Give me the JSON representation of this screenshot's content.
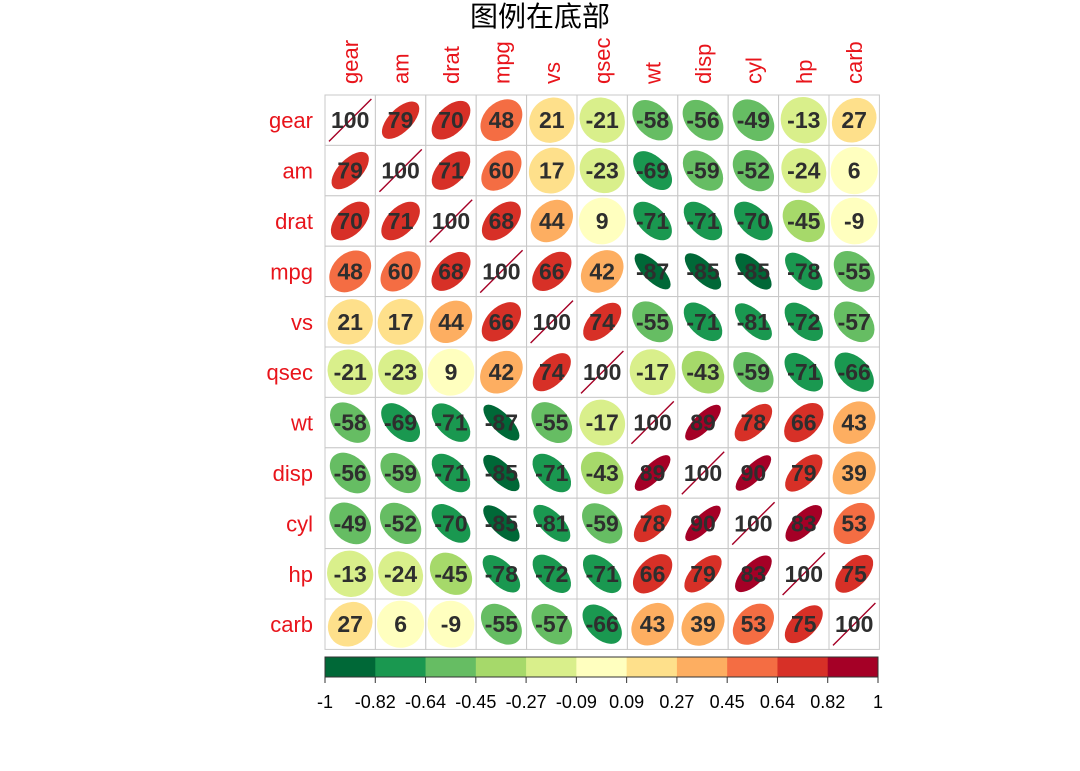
{
  "chart_data": {
    "type": "heatmap",
    "title": "图例在底部",
    "variables": [
      "gear",
      "am",
      "drat",
      "mpg",
      "vs",
      "qsec",
      "wt",
      "disp",
      "cyl",
      "hp",
      "carb"
    ],
    "matrix": [
      [
        1.0,
        0.79,
        0.7,
        0.48,
        0.21,
        -0.21,
        -0.58,
        -0.56,
        -0.49,
        -0.13,
        0.27
      ],
      [
        0.79,
        1.0,
        0.71,
        0.6,
        0.17,
        -0.23,
        -0.69,
        -0.59,
        -0.52,
        -0.24,
        0.06
      ],
      [
        0.7,
        0.71,
        1.0,
        0.68,
        0.44,
        0.09,
        -0.71,
        -0.71,
        -0.7,
        -0.45,
        -0.09
      ],
      [
        0.48,
        0.6,
        0.68,
        1.0,
        0.66,
        0.42,
        -0.87,
        -0.85,
        -0.85,
        -0.78,
        -0.55
      ],
      [
        0.21,
        0.17,
        0.44,
        0.66,
        1.0,
        0.74,
        -0.55,
        -0.71,
        -0.81,
        -0.72,
        -0.57
      ],
      [
        -0.21,
        -0.23,
        0.09,
        0.42,
        0.74,
        1.0,
        -0.17,
        -0.43,
        -0.59,
        -0.71,
        -0.66
      ],
      [
        -0.58,
        -0.69,
        -0.71,
        -0.87,
        -0.55,
        -0.17,
        1.0,
        0.89,
        0.78,
        0.66,
        0.43
      ],
      [
        -0.56,
        -0.59,
        -0.71,
        -0.85,
        -0.71,
        -0.43,
        0.89,
        1.0,
        0.9,
        0.79,
        0.39
      ],
      [
        -0.49,
        -0.52,
        -0.7,
        -0.85,
        -0.81,
        -0.59,
        0.78,
        0.9,
        1.0,
        0.83,
        0.53
      ],
      [
        -0.13,
        -0.24,
        -0.45,
        -0.78,
        -0.72,
        -0.71,
        0.66,
        0.79,
        0.83,
        1.0,
        0.75
      ],
      [
        0.27,
        0.06,
        -0.09,
        -0.55,
        -0.57,
        -0.66,
        0.43,
        0.39,
        0.53,
        0.75,
        1.0
      ]
    ],
    "cell_labels": [
      [
        "100",
        "79",
        "70",
        "48",
        "21",
        "-21",
        "-58",
        "-56",
        "-49",
        "-13",
        "27"
      ],
      [
        "79",
        "100",
        "71",
        "60",
        "17",
        "-23",
        "-69",
        "-59",
        "-52",
        "-24",
        "6"
      ],
      [
        "70",
        "71",
        "100",
        "68",
        "44",
        "9",
        "-71",
        "-71",
        "-70",
        "-45",
        "-9"
      ],
      [
        "48",
        "60",
        "68",
        "100",
        "66",
        "42",
        "-87",
        "-85",
        "-85",
        "-78",
        "-55"
      ],
      [
        "21",
        "17",
        "44",
        "66",
        "100",
        "74",
        "-55",
        "-71",
        "-81",
        "-72",
        "-57"
      ],
      [
        "-21",
        "-23",
        "9",
        "42",
        "74",
        "100",
        "-17",
        "-43",
        "-59",
        "-71",
        "-66"
      ],
      [
        "-58",
        "-69",
        "-71",
        "-87",
        "-55",
        "-17",
        "100",
        "89",
        "78",
        "66",
        "43"
      ],
      [
        "-56",
        "-59",
        "-71",
        "-85",
        "-71",
        "-43",
        "89",
        "100",
        "90",
        "79",
        "39"
      ],
      [
        "-49",
        "-52",
        "-70",
        "-85",
        "-81",
        "-59",
        "78",
        "90",
        "100",
        "83",
        "53"
      ],
      [
        "-13",
        "-24",
        "-45",
        "-78",
        "-72",
        "-71",
        "66",
        "79",
        "83",
        "100",
        "75"
      ],
      [
        "27",
        "6",
        "-9",
        "-55",
        "-57",
        "-66",
        "43",
        "39",
        "53",
        "75",
        "100"
      ]
    ],
    "shape": "ellipse",
    "legend": {
      "position": "bottom",
      "ticks": [
        "-1",
        "-0.82",
        "-0.64",
        "-0.45",
        "-0.27",
        "-0.09",
        "0.09",
        "0.27",
        "0.45",
        "0.64",
        "0.82",
        "1"
      ],
      "range": [
        -1,
        1
      ],
      "colors": [
        "#006837",
        "#1a9850",
        "#66bd63",
        "#a6d96a",
        "#d9ef8b",
        "#ffffbf",
        "#fee08b",
        "#fdae61",
        "#f46d43",
        "#d73027",
        "#a50026"
      ]
    },
    "grid": true
  }
}
